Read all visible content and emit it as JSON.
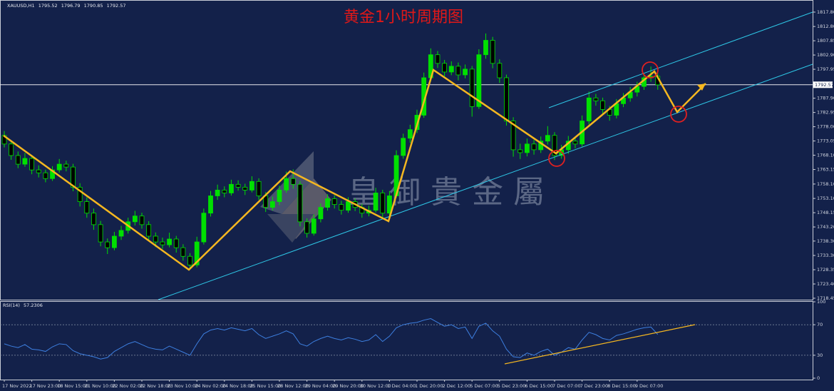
{
  "chart_data": {
    "type": "candlestick",
    "title": "黄金1小时周期图",
    "symbol": "XAUUSD,H1",
    "watermark": "皇御貴金屬",
    "up_color": "#00e000",
    "down_color": "#000000",
    "ylim": [
      1717.95,
      1822.0
    ],
    "yticks": [
      {
        "value": 1817.8,
        "label": "1817.80"
      },
      {
        "value": 1812.8,
        "label": "1812.80"
      },
      1807.85,
      {
        "value": 1802.9,
        "label": "1802.90"
      },
      1797.95,
      {
        "value": 1787.9,
        "label": "1787.90"
      },
      1782.95,
      {
        "value": 1778.0,
        "label": "1778.00"
      },
      1773.05,
      {
        "value": 1768.1,
        "label": "1768.10"
      },
      1763.15,
      {
        "value": 1758.1,
        "label": "1758.10"
      },
      {
        "value": 1753.1,
        "label": "1753.10"
      },
      1748.15,
      {
        "value": 1743.2,
        "label": "1743.20"
      },
      {
        "value": 1738.3,
        "label": "1738.30"
      },
      {
        "value": 1733.3,
        "label": "1733.30"
      },
      1728.35,
      {
        "value": 1723.4,
        "label": "1723.40"
      },
      1718.45
    ],
    "categories": [
      "17 Nov 2022",
      null,
      null,
      null,
      "17 Nov 23:00",
      null,
      null,
      null,
      "18 Nov 15:00",
      null,
      null,
      null,
      "21 Nov 10:00",
      null,
      null,
      null,
      "22 Nov 02:00",
      null,
      null,
      null,
      "22 Nov 18:00",
      null,
      null,
      null,
      "23 Nov 10:00",
      null,
      null,
      null,
      "24 Nov 02:00",
      null,
      null,
      null,
      "24 Nov 18:00",
      null,
      null,
      null,
      "25 Nov 15:00",
      null,
      null,
      null,
      "28 Nov 12:00",
      null,
      null,
      null,
      "29 Nov 04:00",
      null,
      null,
      null,
      "29 Nov 20:00",
      null,
      null,
      null,
      "30 Nov 12:00",
      null,
      null,
      null,
      "1 Dec 04:00",
      null,
      null,
      null,
      "1 Dec 20:00",
      null,
      null,
      null,
      "2 Dec 12:00",
      null,
      null,
      null,
      "5 Dec 07:00",
      null,
      null,
      null,
      "5 Dec 23:00",
      null,
      null,
      null,
      "6 Dec 15:00",
      null,
      null,
      null,
      "7 Dec 07:00",
      null,
      null,
      null,
      "7 Dec 23:00",
      null,
      null,
      null,
      "8 Dec 15:00",
      null,
      null,
      null,
      "9 Dec 07:00",
      null,
      null,
      null
    ],
    "candles": [
      [
        1775,
        1776.5,
        1770.8,
        1772
      ],
      [
        1772,
        1773.2,
        1766.5,
        1768
      ],
      [
        1768,
        1769.4,
        1763.6,
        1765
      ],
      [
        1765,
        1768.9,
        1764.1,
        1767
      ],
      [
        1767,
        1768.2,
        1761.5,
        1763
      ],
      [
        1763,
        1764.6,
        1760.4,
        1762
      ],
      [
        1762,
        1763.1,
        1758.7,
        1760
      ],
      [
        1760,
        1764.3,
        1759.2,
        1763
      ],
      [
        1763,
        1766.8,
        1762.1,
        1765
      ],
      [
        1765,
        1766.2,
        1762.5,
        1764
      ],
      [
        1764,
        1765.1,
        1755.6,
        1757
      ],
      [
        1757,
        1758.4,
        1750.3,
        1752
      ],
      [
        1752,
        1753.5,
        1746.4,
        1748
      ],
      [
        1748,
        1749.6,
        1742.2,
        1744
      ],
      [
        1744,
        1745.3,
        1736.5,
        1738
      ],
      [
        1738,
        1739.2,
        1733.8,
        1736
      ],
      [
        1736,
        1741.5,
        1735.1,
        1740
      ],
      [
        1740,
        1743.6,
        1738.7,
        1742
      ],
      [
        1742,
        1746.4,
        1740.9,
        1745
      ],
      [
        1745,
        1748.8,
        1743.7,
        1747
      ],
      [
        1747,
        1748.1,
        1742.6,
        1744
      ],
      [
        1744,
        1745.2,
        1738.4,
        1740
      ],
      [
        1740,
        1741.3,
        1736.2,
        1738
      ],
      [
        1738,
        1739.5,
        1735.6,
        1737
      ],
      [
        1737,
        1741.2,
        1736.1,
        1739
      ],
      [
        1739,
        1740.1,
        1734.3,
        1736
      ],
      [
        1736,
        1737.2,
        1731.5,
        1733
      ],
      [
        1733,
        1734.1,
        1728.6,
        1730
      ],
      [
        1730,
        1739.8,
        1729.2,
        1738
      ],
      [
        1738,
        1749.6,
        1737.1,
        1748
      ],
      [
        1748,
        1755.7,
        1746.8,
        1754
      ],
      [
        1754,
        1757.9,
        1752.6,
        1756
      ],
      [
        1756,
        1757.3,
        1753.5,
        1755
      ],
      [
        1755,
        1759.6,
        1754.1,
        1758
      ],
      [
        1758,
        1759.4,
        1755.8,
        1757
      ],
      [
        1757,
        1758.2,
        1754.3,
        1756
      ],
      [
        1756,
        1760.8,
        1755.2,
        1759
      ],
      [
        1759,
        1760.1,
        1752.6,
        1754
      ],
      [
        1754,
        1755.3,
        1748.4,
        1750
      ],
      [
        1750,
        1753.7,
        1748.9,
        1752
      ],
      [
        1752,
        1757.5,
        1750.8,
        1756
      ],
      [
        1756,
        1762.4,
        1755.1,
        1760
      ],
      [
        1760,
        1763.2,
        1756.5,
        1758
      ],
      [
        1758,
        1759.1,
        1743.4,
        1745
      ],
      [
        1745,
        1746.2,
        1739.5,
        1741
      ],
      [
        1741,
        1747.6,
        1740.2,
        1746
      ],
      [
        1746,
        1751.4,
        1744.8,
        1750
      ],
      [
        1750,
        1754.6,
        1748.9,
        1753
      ],
      [
        1753,
        1754.2,
        1749.6,
        1751
      ],
      [
        1751,
        1752.3,
        1747.5,
        1749
      ],
      [
        1749,
        1753.5,
        1748.1,
        1752
      ],
      [
        1752,
        1753.1,
        1748.7,
        1750
      ],
      [
        1750,
        1751.2,
        1746.4,
        1748
      ],
      [
        1748,
        1750.6,
        1746.9,
        1749
      ],
      [
        1749,
        1756.8,
        1748.2,
        1755
      ],
      [
        1755,
        1756.1,
        1746.3,
        1748
      ],
      [
        1748,
        1755.7,
        1747.1,
        1754
      ],
      [
        1754,
        1769.8,
        1753.2,
        1768
      ],
      [
        1768,
        1775.6,
        1766.9,
        1774
      ],
      [
        1774,
        1778.7,
        1772.4,
        1777
      ],
      [
        1777,
        1783.9,
        1775.8,
        1782
      ],
      [
        1782,
        1796.8,
        1781.1,
        1795
      ],
      [
        1795,
        1805.2,
        1793.7,
        1803
      ],
      [
        1803,
        1804.3,
        1798.4,
        1800
      ],
      [
        1800,
        1801.2,
        1795.5,
        1797
      ],
      [
        1797,
        1800.7,
        1795.9,
        1799
      ],
      [
        1799,
        1800.3,
        1794.1,
        1796
      ],
      [
        1796,
        1799.6,
        1794.8,
        1798
      ],
      [
        1798,
        1799.1,
        1781.5,
        1785
      ],
      [
        1785,
        1804.9,
        1784.2,
        1803
      ],
      [
        1803,
        1810.4,
        1801.6,
        1808
      ],
      [
        1808,
        1809.2,
        1798.3,
        1800
      ],
      [
        1800,
        1801.4,
        1793.2,
        1795
      ],
      [
        1795,
        1796.1,
        1778.4,
        1780
      ],
      [
        1780,
        1781.3,
        1767.6,
        1770
      ],
      [
        1770,
        1772.1,
        1766.8,
        1769
      ],
      [
        1769,
        1773.9,
        1767.7,
        1772
      ],
      [
        1772,
        1773.4,
        1768.3,
        1770
      ],
      [
        1770,
        1774.6,
        1768.9,
        1773
      ],
      [
        1773,
        1778.2,
        1771.8,
        1775
      ],
      [
        1775,
        1776.1,
        1766.4,
        1768
      ],
      [
        1768,
        1771.7,
        1766.9,
        1770
      ],
      [
        1770,
        1774.8,
        1768.6,
        1773
      ],
      [
        1773,
        1774.2,
        1770.5,
        1772
      ],
      [
        1772,
        1781.9,
        1771.1,
        1780
      ],
      [
        1780,
        1790.2,
        1778.8,
        1788
      ],
      [
        1788,
        1789.4,
        1785.3,
        1787
      ],
      [
        1787,
        1788.1,
        1782.4,
        1784
      ],
      [
        1784,
        1785.2,
        1780.1,
        1782
      ],
      [
        1782,
        1787.6,
        1780.9,
        1786
      ],
      [
        1786,
        1789.7,
        1784.8,
        1788
      ],
      [
        1788,
        1791.8,
        1786.7,
        1790
      ],
      [
        1790,
        1793.6,
        1788.5,
        1792
      ],
      [
        1792,
        1796.7,
        1790.8,
        1795
      ],
      [
        1795,
        1798.9,
        1793.6,
        1795.52
      ],
      [
        1795.52,
        1796.79,
        1790.85,
        1792.57
      ]
    ],
    "rsi": {
      "name": "RSI(14)",
      "color": "#3d7fe0",
      "ylim": [
        0,
        100
      ],
      "yticks": [
        100,
        70,
        30,
        0
      ],
      "levels": [
        70,
        30
      ],
      "values": [
        45,
        42,
        40,
        44,
        38,
        37,
        35,
        41,
        45,
        44,
        36,
        32,
        30,
        28,
        25,
        27,
        35,
        40,
        45,
        48,
        44,
        40,
        38,
        37,
        42,
        38,
        34,
        30,
        45,
        58,
        63,
        65,
        63,
        66,
        64,
        62,
        65,
        57,
        52,
        55,
        58,
        62,
        58,
        45,
        42,
        48,
        52,
        55,
        52,
        50,
        53,
        51,
        48,
        50,
        57,
        48,
        55,
        66,
        70,
        72,
        73,
        76,
        78,
        73,
        68,
        70,
        65,
        67,
        52,
        68,
        72,
        62,
        55,
        38,
        28,
        27,
        33,
        30,
        35,
        38,
        30,
        34,
        40,
        38,
        50,
        60,
        57,
        52,
        50,
        56,
        58,
        61,
        64,
        66,
        67,
        57.2306
      ]
    }
  }
}
